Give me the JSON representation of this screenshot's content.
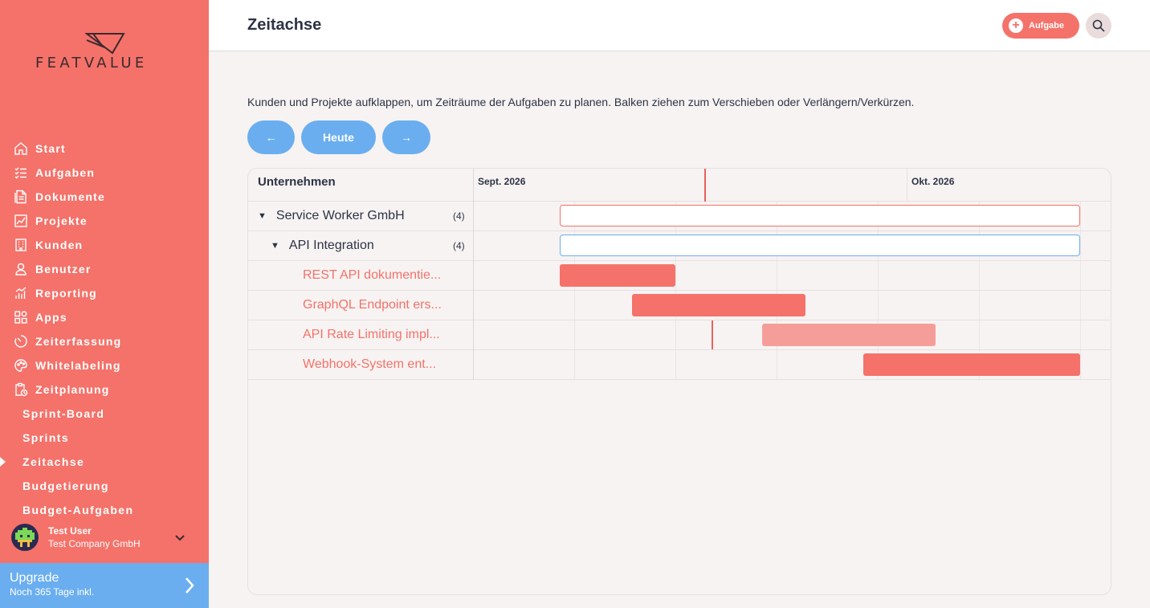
{
  "brand": {
    "logo_text": "FEATVALUE"
  },
  "sidebar": {
    "items": [
      {
        "label": "Start",
        "icon": "home-icon"
      },
      {
        "label": "Aufgaben",
        "icon": "checklist-icon"
      },
      {
        "label": "Dokumente",
        "icon": "document-icon"
      },
      {
        "label": "Projekte",
        "icon": "chart-icon"
      },
      {
        "label": "Kunden",
        "icon": "building-icon"
      },
      {
        "label": "Benutzer",
        "icon": "user-icon"
      },
      {
        "label": "Reporting",
        "icon": "reporting-icon"
      },
      {
        "label": "Apps",
        "icon": "apps-icon"
      },
      {
        "label": "Zeiterfassung",
        "icon": "timer-icon"
      },
      {
        "label": "Whitelabeling",
        "icon": "palette-icon"
      },
      {
        "label": "Zeitplanung",
        "icon": "clipboard-clock-icon"
      }
    ],
    "subitems": [
      {
        "label": "Sprint-Board"
      },
      {
        "label": "Sprints"
      },
      {
        "label": "Zeitachse",
        "active": true
      },
      {
        "label": "Budgetierung"
      },
      {
        "label": "Budget-Aufgaben"
      }
    ],
    "user": {
      "name": "Test User",
      "company": "Test Company GmbH"
    },
    "upgrade": {
      "title": "Upgrade",
      "subtitle": "Noch 365 Tage inkl."
    }
  },
  "header": {
    "title": "Zeitachse",
    "task_button": "Aufgabe"
  },
  "main": {
    "intro": "Kunden und Projekte aufklappen, um Zeiträume der Aufgaben zu planen. Balken ziehen zum Verschieben oder Verlängern/Verkürzen.",
    "prev": "←",
    "today": "Heute",
    "next": "→"
  },
  "gantt": {
    "column_header": "Unternehmen",
    "months": [
      "Sept. 2026",
      "Okt. 2026"
    ],
    "rows": [
      {
        "label": "Service Worker GmbH",
        "count": "(4)",
        "type": "company"
      },
      {
        "label": "API Integration",
        "count": "(4)",
        "type": "project"
      },
      {
        "label": "REST API dokumentie...",
        "type": "task"
      },
      {
        "label": "GraphQL Endpoint ers...",
        "type": "task"
      },
      {
        "label": "API Rate Limiting impl...",
        "type": "task"
      },
      {
        "label": "Webhook-System ent...",
        "type": "task"
      }
    ]
  },
  "colors": {
    "accent": "#f4726a",
    "blue": "#6aaef0"
  }
}
